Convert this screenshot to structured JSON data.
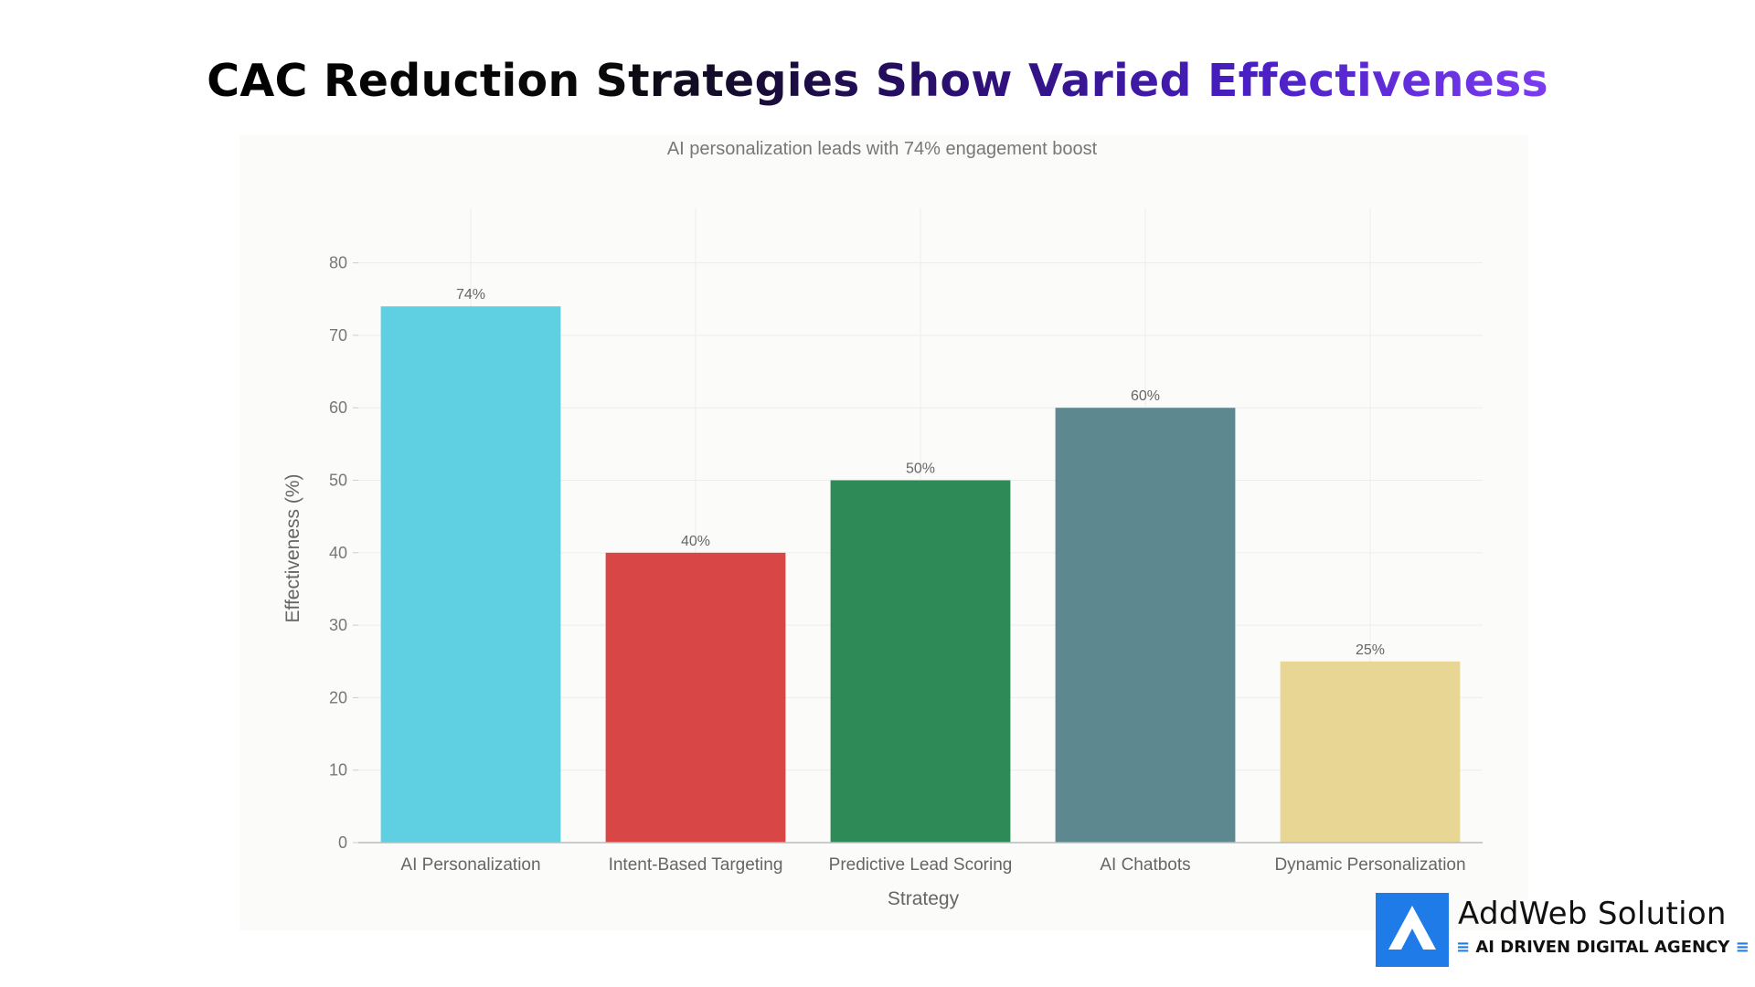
{
  "headline": "CAC Reduction Strategies Show Varied Effectiveness",
  "brand": {
    "name": "AddWeb Solution",
    "tagline": "AI DRIVEN DIGITAL AGENCY",
    "accent_color": "#1f7be8",
    "logo_icon": "addweb-logo-icon"
  },
  "chart_data": {
    "type": "bar",
    "title": "AI personalization leads with 74% engagement boost",
    "xlabel": "Strategy",
    "ylabel": "Effectiveness (%)",
    "ylim": [
      0,
      85
    ],
    "yticks": [
      0,
      10,
      20,
      30,
      40,
      50,
      60,
      70,
      80
    ],
    "grid": true,
    "categories": [
      "AI Personalization",
      "Intent-Based Targeting",
      "Predictive Lead Scoring",
      "AI Chatbots",
      "Dynamic Personalization"
    ],
    "values": [
      74,
      40,
      50,
      60,
      25
    ],
    "value_labels": [
      "74%",
      "40%",
      "50%",
      "60%",
      "25%"
    ],
    "colors": [
      "#5fcfe2",
      "#d94646",
      "#2e8a57",
      "#5d8890",
      "#e8d794"
    ]
  }
}
